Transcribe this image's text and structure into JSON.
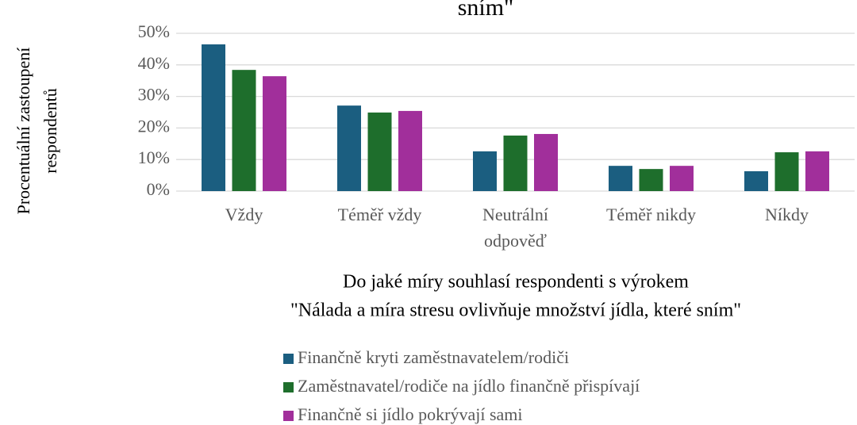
{
  "chart_data": {
    "type": "bar",
    "title": "sním\"",
    "ylabel": [
      "Procentuální zastoupení",
      "respondentů"
    ],
    "xlabel": [
      "Do jaké míry souhlasí respondenti s výrokem",
      "\"Nálada a míra stresu ovlivňuje množství jídla, které sním\""
    ],
    "categories": [
      "Vždy",
      "Téměř vždy",
      "Neutrální odpověď",
      "Téměř nikdy",
      "Níkdy"
    ],
    "series": [
      {
        "name": "Finančně kryti zaměstnavatelem/rodiči",
        "color": "#1b5e80",
        "values": [
          46.5,
          27.1,
          12.6,
          8.0,
          6.3
        ]
      },
      {
        "name": "Zaměstnavatel/rodiče na jídlo finančně přispívají",
        "color": "#1e6e2c",
        "values": [
          38.4,
          24.9,
          17.6,
          7.0,
          12.3
        ]
      },
      {
        "name": "Finančně si jídlo pokrývají sami",
        "color": "#a12f9b",
        "values": [
          36.4,
          25.4,
          18.1,
          8.0,
          12.6
        ]
      }
    ],
    "ylim": [
      0,
      50
    ],
    "yticks": [
      {
        "value": 0,
        "label": "0%"
      },
      {
        "value": 10,
        "label": "10%"
      },
      {
        "value": 20,
        "label": "20%"
      },
      {
        "value": 30,
        "label": "30%"
      },
      {
        "value": 40,
        "label": "40%"
      },
      {
        "value": 50,
        "label": "50%"
      }
    ],
    "grid": true
  }
}
